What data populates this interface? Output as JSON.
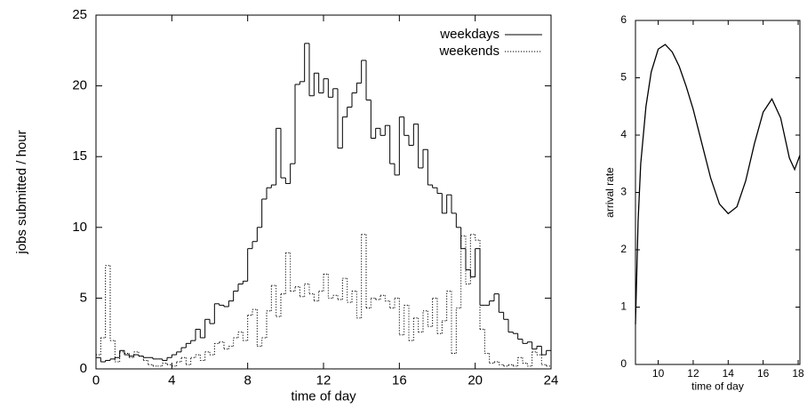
{
  "chart_data": [
    {
      "type": "histogram",
      "x_label": "time of day",
      "y_label": "jobs submitted / hour",
      "bins": [
        0,
        0.25,
        0.5,
        0.75,
        1,
        1.25,
        1.5,
        1.75,
        2,
        2.25,
        2.5,
        2.75,
        3,
        3.25,
        3.5,
        3.75,
        4,
        4.25,
        4.5,
        4.75,
        5,
        5.25,
        5.5,
        5.75,
        6,
        6.25,
        6.5,
        6.75,
        7,
        7.25,
        7.5,
        7.75,
        8,
        8.25,
        8.5,
        8.75,
        9,
        9.25,
        9.5,
        9.75,
        10,
        10.25,
        10.5,
        10.75,
        11,
        11.25,
        11.5,
        11.75,
        12,
        12.25,
        12.5,
        12.75,
        13,
        13.25,
        13.5,
        13.75,
        14,
        14.25,
        14.5,
        14.75,
        15,
        15.25,
        15.5,
        15.75,
        16,
        16.25,
        16.5,
        16.75,
        17,
        17.25,
        17.5,
        17.75,
        18,
        18.25,
        18.5,
        18.75,
        19,
        19.25,
        19.5,
        19.75,
        20,
        20.25,
        20.5,
        20.75,
        21,
        21.25,
        21.5,
        21.75,
        22,
        22.25,
        22.5,
        22.75,
        23,
        23.25,
        23.5,
        23.75,
        24
      ],
      "series": [
        {
          "name": "weekdays",
          "color": "#000000",
          "style": "solid",
          "values": [
            0.8,
            0.5,
            0.6,
            0.7,
            0.8,
            1.3,
            1.0,
            0.9,
            1.0,
            0.9,
            0.8,
            0.8,
            0.7,
            0.7,
            0.6,
            0.8,
            1.0,
            1.2,
            1.5,
            1.8,
            2.0,
            2.8,
            2.2,
            3.5,
            3.2,
            4.6,
            4.5,
            4.4,
            4.8,
            5.5,
            6.0,
            6.2,
            8.5,
            9.0,
            10.0,
            12.0,
            12.8,
            13.0,
            17.0,
            13.5,
            13.1,
            14.5,
            20.1,
            20.3,
            23.0,
            19.3,
            20.9,
            19.5,
            20.5,
            19.2,
            19.8,
            15.6,
            17.8,
            18.5,
            19.5,
            20.2,
            21.8,
            19.0,
            16.3,
            17.0,
            16.5,
            17.2,
            14.5,
            13.7,
            17.8,
            16.5,
            15.8,
            17.3,
            14.2,
            15.5,
            13.0,
            12.8,
            12.4,
            11.0,
            12.3,
            11.0,
            10.0,
            8.5,
            7.0,
            6.5,
            8.5,
            4.5,
            4.5,
            4.8,
            5.3,
            4.0,
            3.5,
            2.6,
            2.5,
            2.1,
            1.8,
            1.9,
            1.4,
            1.6,
            1.0,
            1.3
          ]
        },
        {
          "name": "weekends",
          "color": "#000000",
          "style": "dotted",
          "values": [
            1.0,
            2.2,
            7.3,
            2.0,
            0.5,
            1.2,
            1.1,
            0.8,
            1.2,
            0.9,
            0.6,
            0.3,
            0.2,
            0.2,
            0.4,
            0.3,
            0.2,
            0.5,
            0.8,
            0.3,
            0.8,
            1.0,
            0.6,
            1.2,
            1.0,
            1.8,
            1.9,
            1.4,
            1.6,
            2.2,
            2.6,
            2.0,
            3.8,
            4.2,
            1.6,
            2.2,
            4.1,
            5.9,
            3.7,
            5.3,
            8.2,
            5.5,
            5.8,
            5.1,
            6.0,
            5.3,
            4.8,
            5.5,
            6.7,
            5.0,
            5.2,
            4.9,
            6.4,
            4.7,
            5.5,
            3.6,
            9.5,
            4.3,
            5.0,
            4.9,
            5.2,
            4.8,
            4.3,
            5.0,
            2.4,
            4.5,
            2.0,
            3.6,
            2.6,
            4.1,
            3.0,
            5.0,
            2.5,
            3.4,
            5.5,
            1.1,
            4.3,
            9.4,
            6.0,
            9.5,
            9.1,
            2.8,
            1.1,
            0.4,
            0.5,
            0.3,
            0.2,
            0.3,
            0.2,
            0.8,
            0.4,
            0.2,
            1.2,
            1.0,
            0.3,
            0.2
          ]
        }
      ],
      "xlim": [
        0,
        24
      ],
      "xticks": [
        0,
        4,
        8,
        12,
        16,
        20,
        24
      ],
      "ylim": [
        0,
        25
      ],
      "yticks": [
        0,
        5,
        10,
        15,
        20,
        25
      ],
      "legend": "top-right"
    },
    {
      "type": "line",
      "x_label": "time of day",
      "y_label": "arrival rate",
      "x": [
        8.7,
        8.85,
        9,
        9.3,
        9.6,
        10,
        10.4,
        10.8,
        11.2,
        11.6,
        12,
        12.5,
        13,
        13.5,
        14,
        14.5,
        15,
        15.5,
        16,
        16.5,
        17,
        17.5,
        17.8,
        18.1
      ],
      "series": [
        {
          "name": "arrival rate",
          "color": "#000000",
          "values": [
            0.7,
            2.5,
            3.5,
            4.5,
            5.1,
            5.5,
            5.58,
            5.45,
            5.2,
            4.85,
            4.45,
            3.85,
            3.25,
            2.8,
            2.63,
            2.75,
            3.2,
            3.85,
            4.4,
            4.63,
            4.3,
            3.6,
            3.4,
            3.65
          ]
        }
      ],
      "xlim": [
        8.7,
        18.1
      ],
      "xticks": [
        10,
        12,
        14,
        16,
        18
      ],
      "ylim": [
        0,
        6
      ],
      "yticks": [
        0,
        1,
        2,
        3,
        4,
        5,
        6
      ]
    }
  ]
}
